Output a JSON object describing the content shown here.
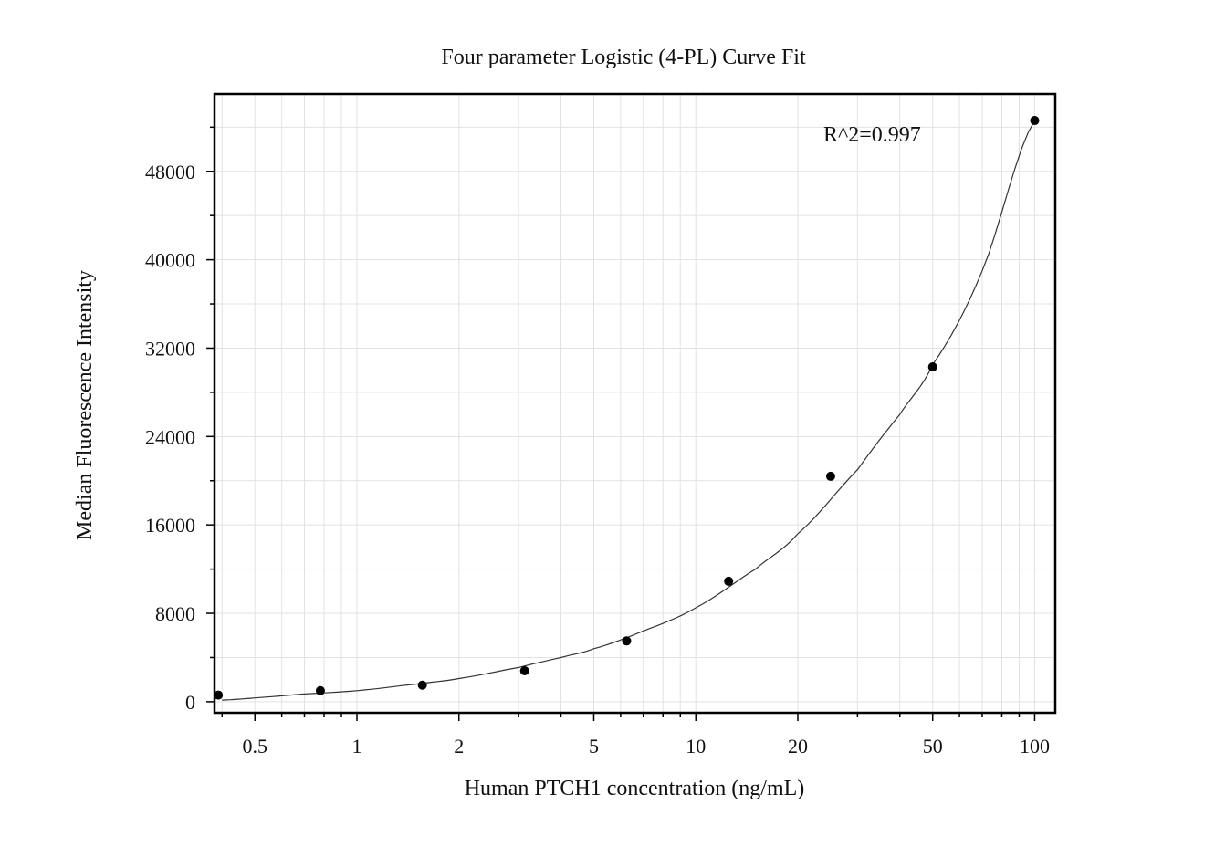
{
  "chart_data": {
    "type": "scatter",
    "title": "Four parameter Logistic (4-PL) Curve Fit",
    "xlabel": "Human PTCH1 concentration (ng/mL)",
    "ylabel": "Median Fluorescence Intensity",
    "x_scale": "log",
    "xlim": [
      0.38,
      115
    ],
    "ylim": [
      -1000,
      55000
    ],
    "x_ticks": [
      0.5,
      1,
      2,
      5,
      10,
      20,
      50,
      100
    ],
    "x_tick_labels": [
      "0.5",
      "1",
      "2",
      "5",
      "10",
      "20",
      "50",
      "100"
    ],
    "y_ticks": [
      0,
      8000,
      16000,
      24000,
      32000,
      40000,
      48000
    ],
    "y_tick_labels": [
      "0",
      "8000",
      "16000",
      "24000",
      "32000",
      "40000",
      "48000"
    ],
    "grid": true,
    "annotation": "R^2=0.997",
    "series": [
      {
        "type": "scatter",
        "x": [
          0.39,
          0.78,
          1.56,
          3.125,
          6.25,
          12.5,
          25,
          50,
          100
        ],
        "y": [
          600,
          1000,
          1500,
          2800,
          5500,
          10900,
          20400,
          30300,
          52600
        ]
      },
      {
        "type": "line",
        "fit": "4-PL",
        "x": [
          0.4,
          0.5,
          0.7,
          1,
          1.5,
          2,
          3,
          4,
          5,
          7,
          10,
          15,
          20,
          30,
          40,
          50,
          70,
          100
        ],
        "y": [
          150,
          350,
          700,
          1000,
          1600,
          2100,
          3100,
          4000,
          4800,
          6400,
          8500,
          12000,
          15200,
          21000,
          26000,
          30500,
          39000,
          52600
        ]
      }
    ]
  }
}
